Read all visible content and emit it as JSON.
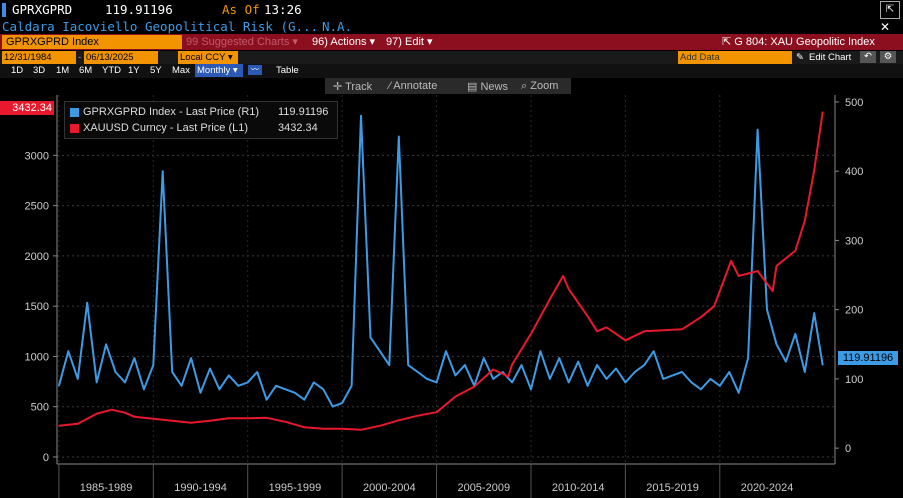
{
  "header": {
    "ticker": "GPRXGPRD",
    "last_price": "119.91196",
    "as_of_label": "As Of",
    "as_of_time": "13:26",
    "name": "Caldara Iacoviello Geopolitical Risk (G...",
    "status": "N.A.",
    "security_field": "GPRXGPRD Index",
    "suggested_charts": "Suggested Charts",
    "actions_label": "Actions",
    "edit_label": "Edit",
    "actions_num": "96",
    "edit_num": "97",
    "chart_id": "G 804: XAU Geopolitic Index"
  },
  "controls": {
    "start_date": "12/31/1984",
    "end_date": "06/13/2025",
    "currency": "Local CCY",
    "ranges": [
      "1D",
      "3D",
      "1M",
      "6M",
      "YTD",
      "1Y",
      "5Y",
      "Max"
    ],
    "frequency": "Monthly",
    "table_label": "Table",
    "add_data": "Add Data",
    "edit_chart": "Edit Chart"
  },
  "chart_toolbar": [
    "Track",
    "Annotate",
    "News",
    "Zoom"
  ],
  "colors": {
    "gpr": "#3d9be6",
    "gold": "#e8192c",
    "accent": "#f29400",
    "header_bar": "#8b0f1f"
  },
  "chart_data": {
    "type": "line",
    "series": [
      {
        "name": "GPRXGPRD Index - Last Price (R1)",
        "last_value": "119.91196",
        "axis": "right",
        "x": [
          "1985",
          "1985.5",
          "1986",
          "1986.5",
          "1987",
          "1987.5",
          "1988",
          "1988.5",
          "1989",
          "1989.5",
          "1990",
          "1990.5",
          "1991",
          "1991.5",
          "1992",
          "1992.5",
          "1993",
          "1993.5",
          "1994",
          "1994.5",
          "1995",
          "1995.5",
          "1996",
          "1996.5",
          "1997",
          "1997.5",
          "1998",
          "1998.5",
          "1999",
          "1999.5",
          "2000",
          "2000.5",
          "2001",
          "2001.5",
          "2002",
          "2002.5",
          "2003",
          "2003.5",
          "2004",
          "2004.5",
          "2005",
          "2005.5",
          "2006",
          "2006.5",
          "2007",
          "2007.5",
          "2008",
          "2008.5",
          "2009",
          "2009.5",
          "2010",
          "2010.5",
          "2011",
          "2011.5",
          "2012",
          "2012.5",
          "2013",
          "2013.5",
          "2014",
          "2014.5",
          "2015",
          "2015.5",
          "2016",
          "2016.5",
          "2017",
          "2017.5",
          "2018",
          "2018.5",
          "2019",
          "2019.5",
          "2020",
          "2020.5",
          "2021",
          "2021.5",
          "2022",
          "2022.5",
          "2023",
          "2023.5",
          "2024",
          "2024.5",
          "2025",
          "2025.45"
        ],
        "values": [
          90,
          140,
          100,
          210,
          95,
          150,
          110,
          95,
          130,
          85,
          120,
          400,
          110,
          90,
          130,
          80,
          115,
          85,
          105,
          90,
          95,
          110,
          70,
          90,
          85,
          80,
          70,
          95,
          85,
          60,
          65,
          90,
          480,
          160,
          140,
          120,
          450,
          120,
          110,
          100,
          95,
          140,
          105,
          120,
          90,
          130,
          100,
          110,
          95,
          120,
          85,
          140,
          100,
          130,
          95,
          125,
          90,
          120,
          100,
          115,
          95,
          110,
          120,
          140,
          100,
          105,
          110,
          95,
          85,
          100,
          90,
          110,
          80,
          130,
          460,
          200,
          150,
          125,
          165,
          110,
          195,
          120
        ]
      },
      {
        "name": "XAUUSD Curncy - Last Price (L1)",
        "last_value": "3432.34",
        "axis": "left",
        "x": [
          "1985",
          "1986",
          "1987",
          "1987.8",
          "1988.5",
          "1989",
          "1990",
          "1991",
          "1992",
          "1993",
          "1994",
          "1995",
          "1996",
          "1997",
          "1998",
          "1999",
          "2000",
          "2001",
          "2002",
          "2003",
          "2004",
          "2005",
          "2006",
          "2007",
          "2008",
          "2008.8",
          "2009",
          "2010",
          "2011",
          "2011.7",
          "2012",
          "2013",
          "2013.5",
          "2014",
          "2015",
          "2016",
          "2017",
          "2018",
          "2019",
          "2019.7",
          "2020",
          "2020.6",
          "2021",
          "2022",
          "2022.8",
          "2023",
          "2024",
          "2024.5",
          "2025",
          "2025.45"
        ],
        "values": [
          310,
          330,
          430,
          470,
          440,
          400,
          380,
          360,
          340,
          360,
          385,
          385,
          390,
          350,
          295,
          280,
          280,
          270,
          310,
          365,
          410,
          445,
          600,
          700,
          870,
          800,
          920,
          1225,
          1570,
          1800,
          1670,
          1400,
          1250,
          1290,
          1160,
          1250,
          1260,
          1270,
          1390,
          1500,
          1650,
          1950,
          1800,
          1850,
          1650,
          1900,
          2050,
          2350,
          2850,
          3432
        ]
      }
    ],
    "left_axis": {
      "ticks": [
        0,
        500,
        1000,
        1500,
        2000,
        2500,
        3000
      ],
      "top_partial": "3500",
      "min": -50,
      "max": 3600
    },
    "right_axis": {
      "ticks": [
        0,
        100,
        200,
        300,
        400,
        500
      ],
      "min": -20,
      "max": 510
    },
    "x_labels": [
      "1985-1989",
      "1990-1994",
      "1995-1999",
      "2000-2004",
      "2005-2009",
      "2010-2014",
      "2015-2019",
      "2020-2024"
    ],
    "x_range": [
      1984.9,
      2026.1
    ],
    "grid": true,
    "legend_position": "top-left"
  }
}
